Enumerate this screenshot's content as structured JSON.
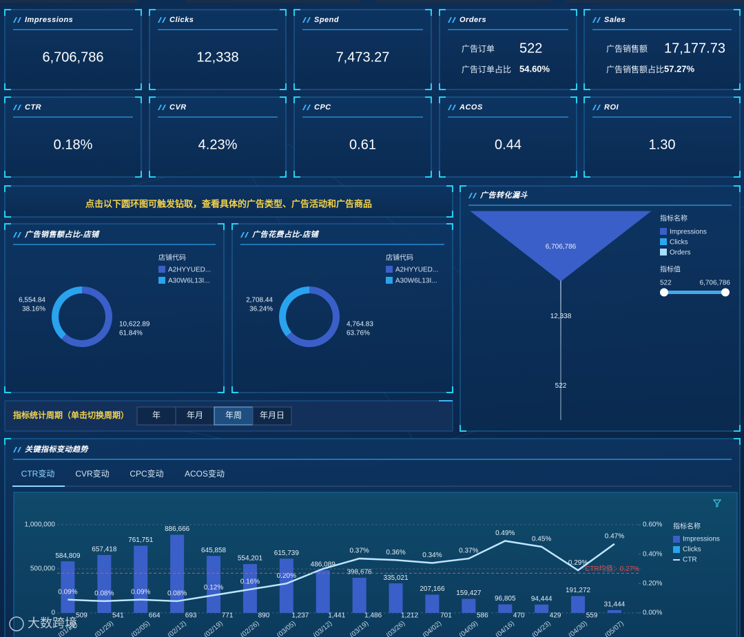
{
  "kpi_row_1": [
    {
      "title": "Impressions",
      "value": "6,706,786"
    },
    {
      "title": "Clicks",
      "value": "12,338"
    },
    {
      "title": "Spend",
      "value": "7,473.27"
    },
    {
      "title": "Orders",
      "rows": [
        {
          "label": "广告订单",
          "value": "522"
        },
        {
          "label": "广告订单占比",
          "value": "54.60%"
        }
      ]
    },
    {
      "title": "Sales",
      "rows": [
        {
          "label": "广告销售额",
          "value": "17,177.73"
        },
        {
          "label": "广告销售额占比",
          "value": "57.27%"
        }
      ]
    }
  ],
  "kpi_row_2": [
    {
      "title": "CTR",
      "value": "0.18%"
    },
    {
      "title": "CVR",
      "value": "4.23%"
    },
    {
      "title": "CPC",
      "value": "0.61"
    },
    {
      "title": "ACOS",
      "value": "0.44"
    },
    {
      "title": "ROI",
      "value": "1.30"
    }
  ],
  "banner": "点击以下圆环图可触发钻取，查看具体的广告类型、广告活动和广告商品",
  "period": {
    "label": "指标统计周期（单击切换周期）",
    "options": [
      "年",
      "年月",
      "年周",
      "年月日"
    ],
    "active": 2
  },
  "trend": {
    "title": "关键指标变动趋势",
    "tabs": [
      "CTR变动",
      "CVR变动",
      "CPC变动",
      "ACOS变动"
    ],
    "active_tab": 0
  },
  "watermark": "大数跨境",
  "chart_data": [
    {
      "type": "donut",
      "title": "广告销售额占比-店铺",
      "legend_title": "店铺代码",
      "categories": [
        "A2HYYUED...",
        "A30W6L13I..."
      ],
      "values": [
        10622.89,
        6554.84
      ],
      "value_labels": [
        "10,622.89",
        "6,554.84"
      ],
      "percents": [
        61.84,
        38.16
      ],
      "percent_labels": [
        "61.84%",
        "38.16%"
      ],
      "colors": [
        "#3b5fc8",
        "#29a3ee"
      ]
    },
    {
      "type": "donut",
      "title": "广告花费占比-店铺",
      "legend_title": "店铺代码",
      "categories": [
        "A2HYYUED...",
        "A30W6L13I..."
      ],
      "values": [
        4764.83,
        2708.44
      ],
      "value_labels": [
        "4,764.83",
        "2,708.44"
      ],
      "percents": [
        63.76,
        36.24
      ],
      "percent_labels": [
        "63.76%",
        "36.24%"
      ],
      "colors": [
        "#3b5fc8",
        "#29a3ee"
      ]
    },
    {
      "type": "funnel",
      "title": "广告转化漏斗",
      "legend_title": "指标名称",
      "categories": [
        "Impressions",
        "Clicks",
        "Orders"
      ],
      "values": [
        6706786,
        12338,
        522
      ],
      "value_labels": [
        "6,706,786",
        "12,338",
        "522"
      ],
      "colors": [
        "#3b5fc8",
        "#2aa7f0",
        "#a9dcfb"
      ],
      "visual_map": {
        "title": "指标值",
        "range": [
          522,
          6706786
        ],
        "range_labels": [
          "522",
          "6,706,786"
        ]
      }
    },
    {
      "type": "bar-line",
      "legend_title": "指标名称",
      "categories": [
        "(01/22)",
        "(01/29)",
        "(02/05)",
        "(02/12)",
        "(02/19)",
        "(02/26)",
        "(03/05)",
        "(03/12)",
        "(03/19)",
        "(03/26)",
        "(04/02)",
        "(04/09)",
        "(04/16)",
        "(04/23)",
        "(04/30)",
        "(05/07)"
      ],
      "series": [
        {
          "name": "Impressions",
          "type": "bar",
          "color": "#3b5fc8",
          "values": [
            584809,
            657418,
            761751,
            886666,
            645858,
            554201,
            615739,
            486089,
            398676,
            335021,
            207166,
            159427,
            96805,
            94444,
            191272,
            31444
          ],
          "value_labels": [
            "584,809",
            "657,418",
            "761,751",
            "886,666",
            "645,858",
            "554,201",
            "615,739",
            "486,089",
            "398,676",
            "335,021",
            "207,166",
            "159,427",
            "96,805",
            "94,444",
            "191,272",
            "31,444"
          ]
        },
        {
          "name": "Clicks",
          "type": "bar",
          "color": "#29a3ee",
          "values": [
            509,
            541,
            664,
            693,
            771,
            890,
            1237,
            1441,
            1486,
            1212,
            701,
            586,
            470,
            429,
            559,
            null
          ],
          "value_labels": [
            "509",
            "541",
            "664",
            "693",
            "771",
            "890",
            "1,237",
            "1,441",
            "1,486",
            "1,212",
            "701",
            "586",
            "470",
            "429",
            "559",
            null
          ]
        },
        {
          "name": "CTR",
          "type": "line",
          "axis": "y2",
          "color": "#bfe6ff",
          "values": [
            0.09,
            0.08,
            0.09,
            0.08,
            0.12,
            0.16,
            0.2,
            0.3,
            0.37,
            0.36,
            0.34,
            0.37,
            0.49,
            0.45,
            0.29,
            0.47
          ],
          "value_labels": [
            "0.09%",
            "0.08%",
            "0.09%",
            "0.08%",
            "0.12%",
            "0.16%",
            "0.20%",
            null,
            "0.37%",
            "0.36%",
            "0.34%",
            "0.37%",
            "0.49%",
            "0.45%",
            "0.29%",
            "0.47%"
          ]
        }
      ],
      "ylim": [
        0,
        1000000
      ],
      "yticks": [
        0,
        {
          "value": 500000,
          "label": "500,000"
        },
        {
          "value": 1000000,
          "label": "1,000,000"
        }
      ],
      "y2lim": [
        0,
        0.6
      ],
      "y2ticks": [
        {
          "value": 0,
          "label": "0.00%"
        },
        {
          "value": 0.2,
          "label": "0.20%"
        },
        {
          "value": 0.4,
          "label": "0.40%"
        },
        {
          "value": 0.6,
          "label": "0.60%"
        }
      ],
      "grid": true,
      "reference_line": {
        "value": 0.27,
        "label": "CTR均值：0.27%",
        "color": "#e05050"
      }
    }
  ]
}
